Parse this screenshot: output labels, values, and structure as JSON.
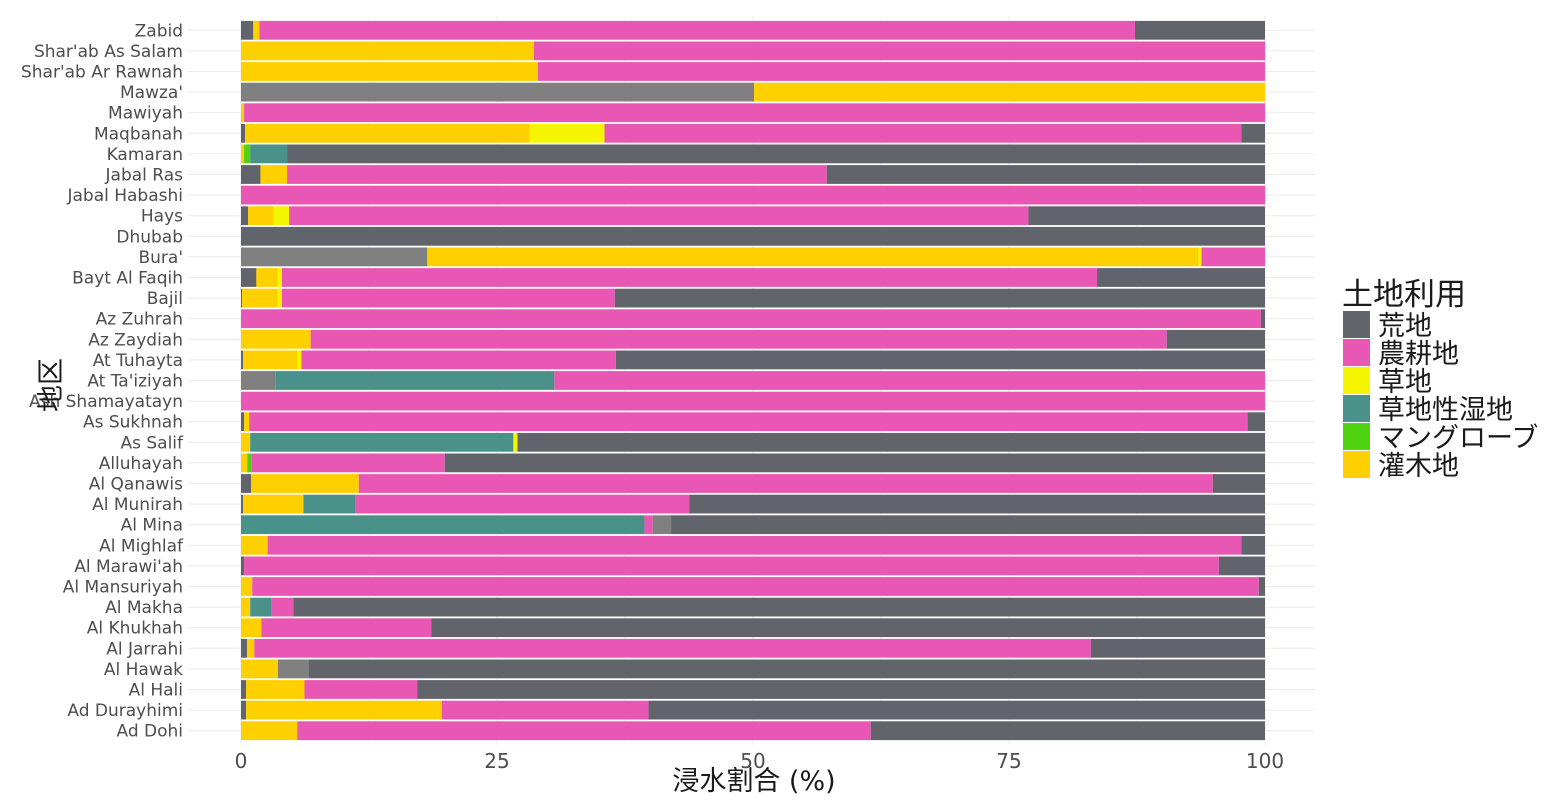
{
  "chart_data": {
    "type": "bar",
    "orientation": "horizontal",
    "stacked": true,
    "xlabel": "浸水割合 (%)",
    "ylabel": "地区",
    "xlim": [
      0,
      100
    ],
    "xticks": [
      0,
      25,
      50,
      75,
      100
    ],
    "grid": true,
    "legend": {
      "title": "土地利用",
      "placement": "right",
      "entries": [
        {
          "label": "荒地",
          "color": "#62646b"
        },
        {
          "label": "農耕地",
          "color": "#e957b4"
        },
        {
          "label": "草地",
          "color": "#f5f500"
        },
        {
          "label": "草地性湿地",
          "color": "#4a9189"
        },
        {
          "label": "マングローブ",
          "color": "#4fd311"
        },
        {
          "label": "灌木地",
          "color": "#ffd000"
        }
      ]
    },
    "extra_colors": {
      "unlabeled_gray": "#808080"
    },
    "categories": [
      "Zabid",
      "Shar'ab As Salam",
      "Shar'ab Ar Rawnah",
      "Mawza'",
      "Mawiyah",
      "Maqbanah",
      "Kamaran",
      "Jabal Ras",
      "Jabal Habashi",
      "Hays",
      "Dhubab",
      "Bura'",
      "Bayt Al Faqih",
      "Bajil",
      "Az Zuhrah",
      "Az Zaydiah",
      "At Tuhayta",
      "At Ta'iziyah",
      "Ash Shamayatayn",
      "As Sukhnah",
      "As Salif",
      "Alluhayah",
      "Al Qanawis",
      "Al Munirah",
      "Al Mina",
      "Al Mighlaf",
      "Al Marawi'ah",
      "Al Mansuriyah",
      "Al Makha",
      "Al Khukhah",
      "Al Jarrahi",
      "Al Hawak",
      "Al Hali",
      "Ad Durayhimi",
      "Ad Dohi"
    ],
    "bars": [
      [
        {
          "c": "#62646b",
          "v": 1.2
        },
        {
          "c": "#ffd000",
          "v": 0.6
        },
        {
          "c": "#e957b4",
          "v": 85.5
        },
        {
          "c": "#62646b",
          "v": 12.7
        }
      ],
      [
        {
          "c": "#ffd000",
          "v": 28.6
        },
        {
          "c": "#e957b4",
          "v": 71.4
        }
      ],
      [
        {
          "c": "#ffd000",
          "v": 29.0
        },
        {
          "c": "#e957b4",
          "v": 71.0
        }
      ],
      [
        {
          "c": "#808080",
          "v": 50.1
        },
        {
          "c": "#ffd000",
          "v": 49.9
        }
      ],
      [
        {
          "c": "#ffd000",
          "v": 0.3
        },
        {
          "c": "#e957b4",
          "v": 99.7
        }
      ],
      [
        {
          "c": "#62646b",
          "v": 0.4
        },
        {
          "c": "#ffd000",
          "v": 27.8
        },
        {
          "c": "#f5f500",
          "v": 7.3
        },
        {
          "c": "#e957b4",
          "v": 62.2
        },
        {
          "c": "#62646b",
          "v": 2.3
        }
      ],
      [
        {
          "c": "#ffd000",
          "v": 0.3
        },
        {
          "c": "#4fd311",
          "v": 0.6
        },
        {
          "c": "#4a9189",
          "v": 3.6
        },
        {
          "c": "#62646b",
          "v": 95.5
        }
      ],
      [
        {
          "c": "#62646b",
          "v": 1.9
        },
        {
          "c": "#ffd000",
          "v": 2.6
        },
        {
          "c": "#e957b4",
          "v": 52.7
        },
        {
          "c": "#62646b",
          "v": 42.8
        }
      ],
      [
        {
          "c": "#e957b4",
          "v": 100
        }
      ],
      [
        {
          "c": "#62646b",
          "v": 0.7
        },
        {
          "c": "#ffd000",
          "v": 2.5
        },
        {
          "c": "#f5f500",
          "v": 1.5
        },
        {
          "c": "#e957b4",
          "v": 72.2
        },
        {
          "c": "#62646b",
          "v": 23.1
        }
      ],
      [
        {
          "c": "#62646b",
          "v": 100
        }
      ],
      [
        {
          "c": "#808080",
          "v": 18.2
        },
        {
          "c": "#ffd000",
          "v": 75.3
        },
        {
          "c": "#f5f500",
          "v": 0.3
        },
        {
          "c": "#e957b4",
          "v": 6.2
        }
      ],
      [
        {
          "c": "#62646b",
          "v": 1.5
        },
        {
          "c": "#ffd000",
          "v": 2.1
        },
        {
          "c": "#f5f500",
          "v": 0.4
        },
        {
          "c": "#e957b4",
          "v": 79.6
        },
        {
          "c": "#62646b",
          "v": 16.4
        }
      ],
      [
        {
          "c": "#62646b",
          "v": 0.1
        },
        {
          "c": "#ffd000",
          "v": 3.5
        },
        {
          "c": "#f5f500",
          "v": 0.4
        },
        {
          "c": "#e957b4",
          "v": 32.5
        },
        {
          "c": "#62646b",
          "v": 63.5
        }
      ],
      [
        {
          "c": "#e957b4",
          "v": 99.6
        },
        {
          "c": "#62646b",
          "v": 0.4
        }
      ],
      [
        {
          "c": "#ffd000",
          "v": 6.8
        },
        {
          "c": "#e957b4",
          "v": 83.6
        },
        {
          "c": "#62646b",
          "v": 9.6
        }
      ],
      [
        {
          "c": "#62646b",
          "v": 0.2
        },
        {
          "c": "#ffd000",
          "v": 5.3
        },
        {
          "c": "#f5f500",
          "v": 0.4
        },
        {
          "c": "#e957b4",
          "v": 30.7
        },
        {
          "c": "#62646b",
          "v": 63.4
        }
      ],
      [
        {
          "c": "#808080",
          "v": 3.4
        },
        {
          "c": "#4a9189",
          "v": 27.2
        },
        {
          "c": "#e957b4",
          "v": 69.4
        }
      ],
      [
        {
          "c": "#e957b4",
          "v": 100
        }
      ],
      [
        {
          "c": "#62646b",
          "v": 0.3
        },
        {
          "c": "#ffd000",
          "v": 0.5
        },
        {
          "c": "#e957b4",
          "v": 97.5
        },
        {
          "c": "#62646b",
          "v": 1.7
        }
      ],
      [
        {
          "c": "#ffd000",
          "v": 0.9
        },
        {
          "c": "#4a9189",
          "v": 25.7
        },
        {
          "c": "#f5f500",
          "v": 0.4
        },
        {
          "c": "#62646b",
          "v": 73.0
        }
      ],
      [
        {
          "c": "#ffd000",
          "v": 0.6
        },
        {
          "c": "#4fd311",
          "v": 0.4
        },
        {
          "c": "#e957b4",
          "v": 18.9
        },
        {
          "c": "#62646b",
          "v": 80.1
        }
      ],
      [
        {
          "c": "#62646b",
          "v": 1.0
        },
        {
          "c": "#ffd000",
          "v": 10.5
        },
        {
          "c": "#e957b4",
          "v": 83.4
        },
        {
          "c": "#62646b",
          "v": 5.1
        }
      ],
      [
        {
          "c": "#62646b",
          "v": 0.2
        },
        {
          "c": "#ffd000",
          "v": 5.9
        },
        {
          "c": "#4a9189",
          "v": 5.1
        },
        {
          "c": "#e957b4",
          "v": 32.6
        },
        {
          "c": "#62646b",
          "v": 56.2
        }
      ],
      [
        {
          "c": "#4a9189",
          "v": 39.4
        },
        {
          "c": "#e957b4",
          "v": 0.8
        },
        {
          "c": "#808080",
          "v": 1.8
        },
        {
          "c": "#62646b",
          "v": 58.0
        }
      ],
      [
        {
          "c": "#ffd000",
          "v": 2.6
        },
        {
          "c": "#e957b4",
          "v": 95.1
        },
        {
          "c": "#62646b",
          "v": 2.3
        }
      ],
      [
        {
          "c": "#62646b",
          "v": 0.3
        },
        {
          "c": "#e957b4",
          "v": 95.2
        },
        {
          "c": "#62646b",
          "v": 4.5
        }
      ],
      [
        {
          "c": "#ffd000",
          "v": 1.1
        },
        {
          "c": "#e957b4",
          "v": 98.3
        },
        {
          "c": "#62646b",
          "v": 0.6
        }
      ],
      [
        {
          "c": "#ffd000",
          "v": 0.9
        },
        {
          "c": "#4a9189",
          "v": 2.1
        },
        {
          "c": "#e957b4",
          "v": 2.1
        },
        {
          "c": "#62646b",
          "v": 94.9
        }
      ],
      [
        {
          "c": "#ffd000",
          "v": 2.0
        },
        {
          "c": "#e957b4",
          "v": 16.6
        },
        {
          "c": "#62646b",
          "v": 81.4
        }
      ],
      [
        {
          "c": "#62646b",
          "v": 0.6
        },
        {
          "c": "#ffd000",
          "v": 0.7
        },
        {
          "c": "#e957b4",
          "v": 81.7
        },
        {
          "c": "#62646b",
          "v": 17.0
        }
      ],
      [
        {
          "c": "#ffd000",
          "v": 3.6
        },
        {
          "c": "#808080",
          "v": 3.0
        },
        {
          "c": "#62646b",
          "v": 93.4
        }
      ],
      [
        {
          "c": "#62646b",
          "v": 0.5
        },
        {
          "c": "#ffd000",
          "v": 5.7
        },
        {
          "c": "#e957b4",
          "v": 11.0
        },
        {
          "c": "#62646b",
          "v": 82.8
        }
      ],
      [
        {
          "c": "#62646b",
          "v": 0.5
        },
        {
          "c": "#ffd000",
          "v": 19.1
        },
        {
          "c": "#e957b4",
          "v": 20.2
        },
        {
          "c": "#62646b",
          "v": 60.2
        }
      ],
      [
        {
          "c": "#ffd000",
          "v": 5.5
        },
        {
          "c": "#e957b4",
          "v": 56.0
        },
        {
          "c": "#62646b",
          "v": 38.5
        }
      ]
    ]
  }
}
